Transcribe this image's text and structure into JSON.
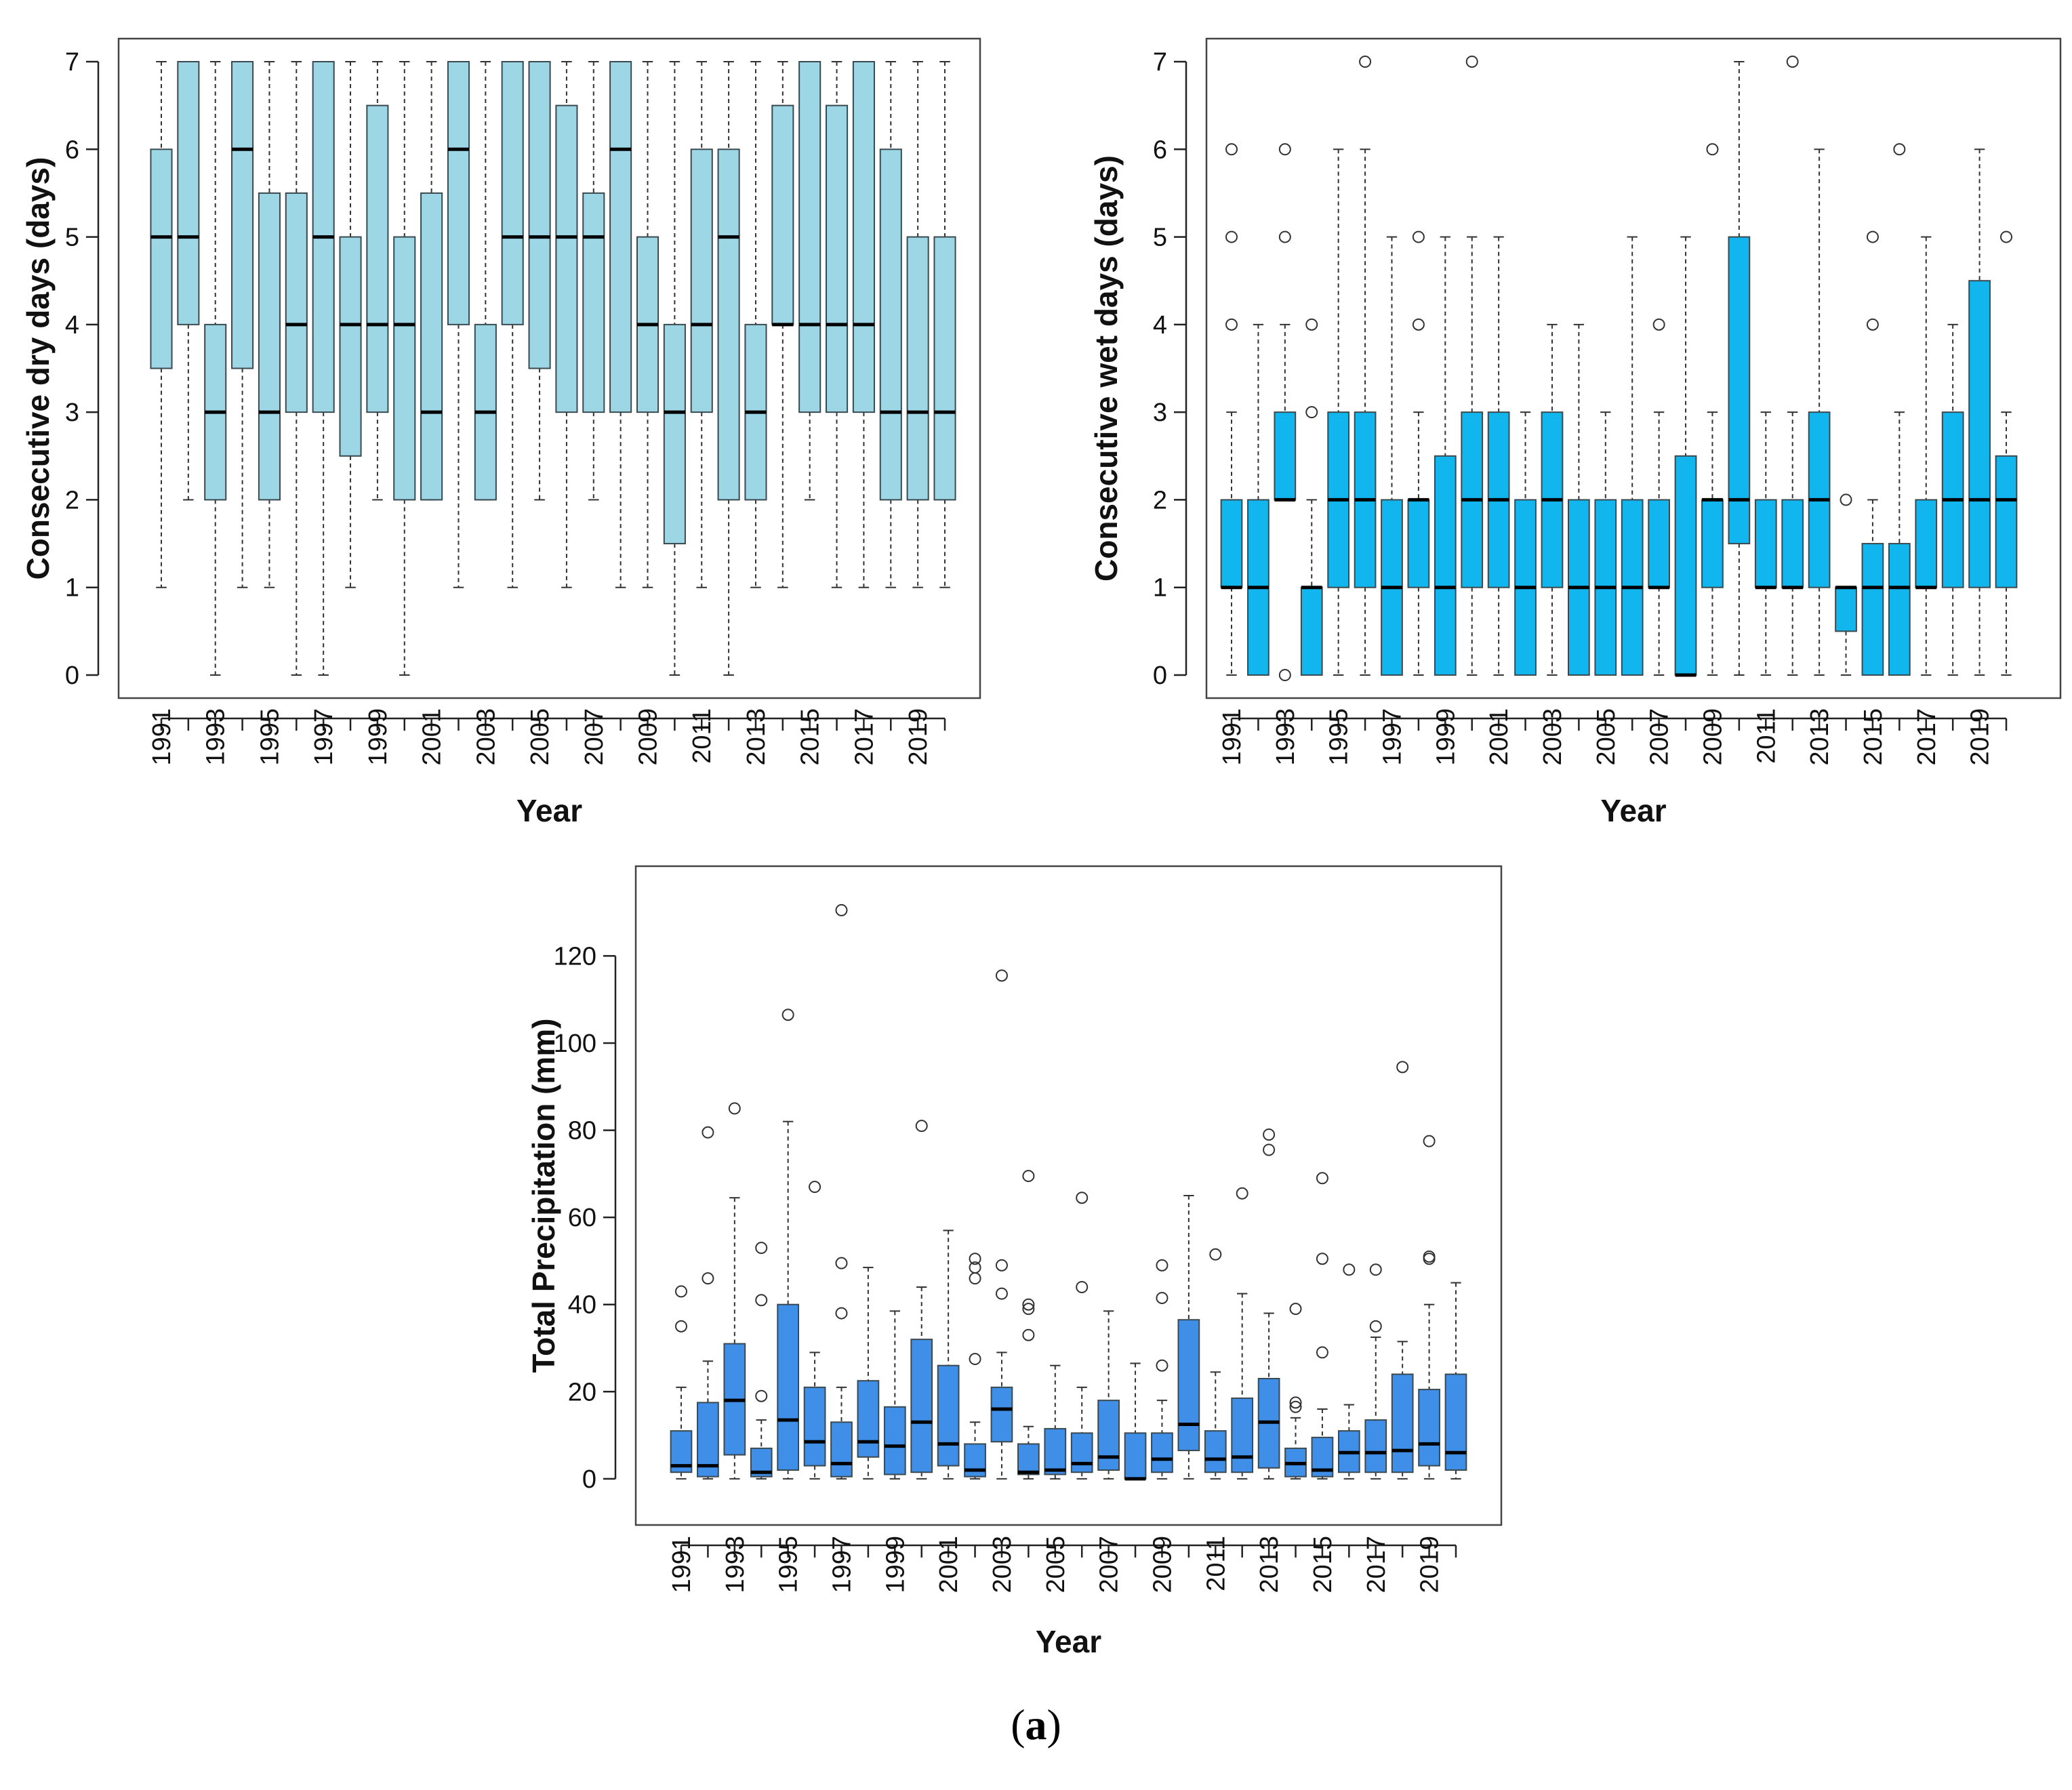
{
  "panel_label": {
    "open": "(",
    "letter": "a",
    "close": ")"
  },
  "chart_data": [
    {
      "type": "boxplot",
      "id": "dry",
      "title": "",
      "xlabel": "Year",
      "ylabel": "Consecutive dry days (days)",
      "ylim": [
        0,
        7
      ],
      "yticks": [
        0,
        1,
        2,
        3,
        4,
        5,
        6,
        7
      ],
      "fill": "#9dd7e6",
      "categories": [
        "1991",
        "1992",
        "1993",
        "1994",
        "1995",
        "1996",
        "1997",
        "1998",
        "1999",
        "2000",
        "2001",
        "2002",
        "2003",
        "2004",
        "2005",
        "2006",
        "2007",
        "2008",
        "2009",
        "2010",
        "2011",
        "2012",
        "2013",
        "2014",
        "2015",
        "2016",
        "2017",
        "2018",
        "2019",
        "2020"
      ],
      "tick_labels": [
        "1991",
        "1993",
        "1995",
        "1997",
        "1999",
        "2001",
        "2003",
        "2005",
        "2007",
        "2009",
        "2011",
        "2013",
        "2015",
        "2017",
        "2019"
      ],
      "boxes": [
        {
          "min": 1,
          "q1": 3.5,
          "median": 5,
          "q3": 6,
          "max": 7,
          "outliers": []
        },
        {
          "min": 2,
          "q1": 4,
          "median": 5,
          "q3": 7,
          "max": 7,
          "outliers": []
        },
        {
          "min": 0,
          "q1": 2,
          "median": 3,
          "q3": 4,
          "max": 7,
          "outliers": []
        },
        {
          "min": 1,
          "q1": 3.5,
          "median": 6,
          "q3": 7,
          "max": 7,
          "outliers": []
        },
        {
          "min": 1,
          "q1": 2,
          "median": 3,
          "q3": 5.5,
          "max": 7,
          "outliers": []
        },
        {
          "min": 0,
          "q1": 3,
          "median": 4,
          "q3": 5.5,
          "max": 7,
          "outliers": []
        },
        {
          "min": 0,
          "q1": 3,
          "median": 5,
          "q3": 7,
          "max": 7,
          "outliers": []
        },
        {
          "min": 1,
          "q1": 2.5,
          "median": 4,
          "q3": 5,
          "max": 7,
          "outliers": []
        },
        {
          "min": 2,
          "q1": 3,
          "median": 4,
          "q3": 6.5,
          "max": 7,
          "outliers": []
        },
        {
          "min": 0,
          "q1": 2,
          "median": 4,
          "q3": 5,
          "max": 7,
          "outliers": []
        },
        {
          "min": 2,
          "q1": 2,
          "median": 3,
          "q3": 5.5,
          "max": 7,
          "outliers": []
        },
        {
          "min": 1,
          "q1": 4,
          "median": 6,
          "q3": 7,
          "max": 7,
          "outliers": []
        },
        {
          "min": 2,
          "q1": 2,
          "median": 3,
          "q3": 4,
          "max": 7,
          "outliers": []
        },
        {
          "min": 1,
          "q1": 4,
          "median": 5,
          "q3": 7,
          "max": 7,
          "outliers": []
        },
        {
          "min": 2,
          "q1": 3.5,
          "median": 5,
          "q3": 7,
          "max": 7,
          "outliers": []
        },
        {
          "min": 1,
          "q1": 3,
          "median": 5,
          "q3": 6.5,
          "max": 7,
          "outliers": []
        },
        {
          "min": 2,
          "q1": 3,
          "median": 5,
          "q3": 5.5,
          "max": 7,
          "outliers": []
        },
        {
          "min": 1,
          "q1": 3,
          "median": 6,
          "q3": 7,
          "max": 7,
          "outliers": []
        },
        {
          "min": 1,
          "q1": 3,
          "median": 4,
          "q3": 5,
          "max": 7,
          "outliers": []
        },
        {
          "min": 0,
          "q1": 1.5,
          "median": 3,
          "q3": 4,
          "max": 7,
          "outliers": []
        },
        {
          "min": 1,
          "q1": 3,
          "median": 4,
          "q3": 6,
          "max": 7,
          "outliers": []
        },
        {
          "min": 0,
          "q1": 2,
          "median": 5,
          "q3": 6,
          "max": 7,
          "outliers": []
        },
        {
          "min": 1,
          "q1": 2,
          "median": 3,
          "q3": 4,
          "max": 7,
          "outliers": []
        },
        {
          "min": 1,
          "q1": 4,
          "median": 4,
          "q3": 6.5,
          "max": 7,
          "outliers": []
        },
        {
          "min": 2,
          "q1": 3,
          "median": 4,
          "q3": 7,
          "max": 7,
          "outliers": []
        },
        {
          "min": 1,
          "q1": 3,
          "median": 4,
          "q3": 6.5,
          "max": 7,
          "outliers": []
        },
        {
          "min": 1,
          "q1": 3,
          "median": 4,
          "q3": 7,
          "max": 7,
          "outliers": []
        },
        {
          "min": 1,
          "q1": 2,
          "median": 3,
          "q3": 6,
          "max": 7,
          "outliers": []
        },
        {
          "min": 1,
          "q1": 2,
          "median": 3,
          "q3": 5,
          "max": 7,
          "outliers": []
        },
        {
          "min": 1,
          "q1": 2,
          "median": 3,
          "q3": 5,
          "max": 7,
          "outliers": []
        }
      ]
    },
    {
      "type": "boxplot",
      "id": "wet",
      "title": "",
      "xlabel": "Year",
      "ylabel": "Consecutive wet days (days)",
      "ylim": [
        0,
        7
      ],
      "yticks": [
        0,
        1,
        2,
        3,
        4,
        5,
        6,
        7
      ],
      "fill": "#12b6ee",
      "categories": [
        "1991",
        "1992",
        "1993",
        "1994",
        "1995",
        "1996",
        "1997",
        "1998",
        "1999",
        "2000",
        "2001",
        "2002",
        "2003",
        "2004",
        "2005",
        "2006",
        "2007",
        "2008",
        "2009",
        "2010",
        "2011",
        "2012",
        "2013",
        "2014",
        "2015",
        "2016",
        "2017",
        "2018",
        "2019",
        "2020"
      ],
      "tick_labels": [
        "1991",
        "1993",
        "1995",
        "1997",
        "1999",
        "2001",
        "2003",
        "2005",
        "2007",
        "2009",
        "2011",
        "2013",
        "2015",
        "2017",
        "2019"
      ],
      "boxes": [
        {
          "min": 0,
          "q1": 1,
          "median": 1,
          "q3": 2,
          "max": 3,
          "outliers": [
            4,
            5,
            6
          ]
        },
        {
          "min": 0,
          "q1": 0,
          "median": 1,
          "q3": 2,
          "max": 4,
          "outliers": []
        },
        {
          "min": 2,
          "q1": 2,
          "median": 2,
          "q3": 3,
          "max": 4,
          "outliers": [
            0,
            5,
            6
          ]
        },
        {
          "min": 0,
          "q1": 0,
          "median": 1,
          "q3": 1,
          "max": 2,
          "outliers": [
            3,
            4
          ]
        },
        {
          "min": 0,
          "q1": 1,
          "median": 2,
          "q3": 3,
          "max": 6,
          "outliers": []
        },
        {
          "min": 0,
          "q1": 1,
          "median": 2,
          "q3": 3,
          "max": 6,
          "outliers": [
            7
          ]
        },
        {
          "min": 0,
          "q1": 0,
          "median": 1,
          "q3": 2,
          "max": 5,
          "outliers": []
        },
        {
          "min": 0,
          "q1": 1,
          "median": 2,
          "q3": 2,
          "max": 3,
          "outliers": [
            4,
            5
          ]
        },
        {
          "min": 0,
          "q1": 0,
          "median": 1,
          "q3": 2.5,
          "max": 5,
          "outliers": []
        },
        {
          "min": 0,
          "q1": 1,
          "median": 2,
          "q3": 3,
          "max": 5,
          "outliers": [
            7
          ]
        },
        {
          "min": 0,
          "q1": 1,
          "median": 2,
          "q3": 3,
          "max": 5,
          "outliers": []
        },
        {
          "min": 0,
          "q1": 0,
          "median": 1,
          "q3": 2,
          "max": 3,
          "outliers": []
        },
        {
          "min": 0,
          "q1": 1,
          "median": 2,
          "q3": 3,
          "max": 4,
          "outliers": []
        },
        {
          "min": 0,
          "q1": 0,
          "median": 1,
          "q3": 2,
          "max": 4,
          "outliers": []
        },
        {
          "min": 0,
          "q1": 0,
          "median": 1,
          "q3": 2,
          "max": 3,
          "outliers": []
        },
        {
          "min": 0,
          "q1": 0,
          "median": 1,
          "q3": 2,
          "max": 5,
          "outliers": []
        },
        {
          "min": 0,
          "q1": 1,
          "median": 1,
          "q3": 2,
          "max": 3,
          "outliers": [
            4
          ]
        },
        {
          "min": 0,
          "q1": 0,
          "median": 0,
          "q3": 2.5,
          "max": 5,
          "outliers": []
        },
        {
          "min": 0,
          "q1": 1,
          "median": 2,
          "q3": 2,
          "max": 3,
          "outliers": [
            6
          ]
        },
        {
          "min": 0,
          "q1": 1.5,
          "median": 2,
          "q3": 5,
          "max": 7,
          "outliers": []
        },
        {
          "min": 0,
          "q1": 1,
          "median": 1,
          "q3": 2,
          "max": 3,
          "outliers": []
        },
        {
          "min": 0,
          "q1": 1,
          "median": 1,
          "q3": 2,
          "max": 3,
          "outliers": [
            7
          ]
        },
        {
          "min": 0,
          "q1": 1,
          "median": 2,
          "q3": 3,
          "max": 6,
          "outliers": []
        },
        {
          "min": 0,
          "q1": 0.5,
          "median": 1,
          "q3": 1,
          "max": 1,
          "outliers": [
            2
          ]
        },
        {
          "min": 0,
          "q1": 0,
          "median": 1,
          "q3": 1.5,
          "max": 2,
          "outliers": [
            4,
            5
          ]
        },
        {
          "min": 0,
          "q1": 0,
          "median": 1,
          "q3": 1.5,
          "max": 3,
          "outliers": [
            6
          ]
        },
        {
          "min": 0,
          "q1": 1,
          "median": 1,
          "q3": 2,
          "max": 5,
          "outliers": []
        },
        {
          "min": 0,
          "q1": 1,
          "median": 2,
          "q3": 3,
          "max": 4,
          "outliers": []
        },
        {
          "min": 0,
          "q1": 1,
          "median": 2,
          "q3": 4.5,
          "max": 6,
          "outliers": []
        },
        {
          "min": 0,
          "q1": 1,
          "median": 2,
          "q3": 2.5,
          "max": 3,
          "outliers": [
            5
          ]
        }
      ]
    },
    {
      "type": "boxplot",
      "id": "precip",
      "title": "",
      "xlabel": "Year",
      "ylabel": "Total Precipitation (mm)",
      "ylim": [
        -5,
        135
      ],
      "yticks": [
        0,
        20,
        40,
        60,
        80,
        100,
        120
      ],
      "fill": "#3f8ee8",
      "categories": [
        "1991",
        "1992",
        "1993",
        "1994",
        "1995",
        "1996",
        "1997",
        "1998",
        "1999",
        "2000",
        "2001",
        "2002",
        "2003",
        "2004",
        "2005",
        "2006",
        "2007",
        "2008",
        "2009",
        "2010",
        "2011",
        "2012",
        "2013",
        "2014",
        "2015",
        "2016",
        "2017",
        "2018",
        "2019",
        "2020"
      ],
      "tick_labels": [
        "1991",
        "1993",
        "1995",
        "1997",
        "1999",
        "2001",
        "2003",
        "2005",
        "2007",
        "2009",
        "2011",
        "2013",
        "2015",
        "2017",
        "2019"
      ],
      "boxes": [
        {
          "min": 0,
          "q1": 1.5,
          "median": 3,
          "q3": 11,
          "max": 21,
          "outliers": [
            35,
            43
          ]
        },
        {
          "min": 0,
          "q1": 0.5,
          "median": 3,
          "q3": 17.5,
          "max": 27,
          "outliers": [
            46,
            79.5
          ]
        },
        {
          "min": 0,
          "q1": 5.5,
          "median": 18,
          "q3": 31,
          "max": 64.5,
          "outliers": [
            85
          ]
        },
        {
          "min": 0,
          "q1": 0.5,
          "median": 1.5,
          "q3": 7,
          "max": 13.5,
          "outliers": [
            19,
            41,
            53
          ]
        },
        {
          "min": 0,
          "q1": 2,
          "median": 13.5,
          "q3": 40,
          "max": 82,
          "outliers": [
            106.5
          ]
        },
        {
          "min": 0,
          "q1": 3,
          "median": 8.5,
          "q3": 21,
          "max": 29,
          "outliers": [
            67
          ]
        },
        {
          "min": 0,
          "q1": 0.5,
          "median": 3.5,
          "q3": 13,
          "max": 21,
          "outliers": [
            38,
            49.5,
            130.5
          ]
        },
        {
          "min": 0,
          "q1": 5,
          "median": 8.5,
          "q3": 22.5,
          "max": 48.5,
          "outliers": []
        },
        {
          "min": 0,
          "q1": 1,
          "median": 7.5,
          "q3": 16.5,
          "max": 38.5,
          "outliers": []
        },
        {
          "min": 0,
          "q1": 1.5,
          "median": 13,
          "q3": 32,
          "max": 44,
          "outliers": [
            81
          ]
        },
        {
          "min": 0,
          "q1": 3,
          "median": 8,
          "q3": 26,
          "max": 57,
          "outliers": []
        },
        {
          "min": 0,
          "q1": 0.5,
          "median": 2,
          "q3": 8,
          "max": 13,
          "outliers": [
            27.5,
            46,
            48.5,
            50.5
          ]
        },
        {
          "min": 0,
          "q1": 8.5,
          "median": 16,
          "q3": 21,
          "max": 29,
          "outliers": [
            42.5,
            49,
            115.5
          ]
        },
        {
          "min": 0,
          "q1": 1,
          "median": 1.5,
          "q3": 8,
          "max": 12,
          "outliers": [
            33,
            39,
            40,
            69.5
          ]
        },
        {
          "min": 0,
          "q1": 1,
          "median": 2,
          "q3": 11.5,
          "max": 26,
          "outliers": []
        },
        {
          "min": 0,
          "q1": 1.5,
          "median": 3.5,
          "q3": 10.5,
          "max": 21,
          "outliers": [
            44,
            64.5
          ]
        },
        {
          "min": 0,
          "q1": 2,
          "median": 5,
          "q3": 18,
          "max": 38.5,
          "outliers": []
        },
        {
          "min": 0,
          "q1": 0,
          "median": 0,
          "q3": 10.5,
          "max": 26.5,
          "outliers": []
        },
        {
          "min": 0,
          "q1": 1.5,
          "median": 4.5,
          "q3": 10.5,
          "max": 18,
          "outliers": [
            26,
            41.5,
            49
          ]
        },
        {
          "min": 0,
          "q1": 6.5,
          "median": 12.5,
          "q3": 36.5,
          "max": 65,
          "outliers": []
        },
        {
          "min": 0,
          "q1": 1.5,
          "median": 4.5,
          "q3": 11,
          "max": 24.5,
          "outliers": [
            51.5
          ]
        },
        {
          "min": 0,
          "q1": 1.5,
          "median": 5,
          "q3": 18.5,
          "max": 42.5,
          "outliers": [
            65.5
          ]
        },
        {
          "min": 0,
          "q1": 2.5,
          "median": 13,
          "q3": 23,
          "max": 38,
          "outliers": [
            75.5,
            79
          ]
        },
        {
          "min": 0,
          "q1": 0.5,
          "median": 3.5,
          "q3": 7,
          "max": 14,
          "outliers": [
            16.5,
            17.5,
            39
          ]
        },
        {
          "min": 0,
          "q1": 0.5,
          "median": 2,
          "q3": 9.5,
          "max": 16,
          "outliers": [
            29,
            50.5,
            69
          ]
        },
        {
          "min": 0,
          "q1": 1.5,
          "median": 6,
          "q3": 11,
          "max": 17,
          "outliers": [
            48
          ]
        },
        {
          "min": 0,
          "q1": 1.5,
          "median": 6,
          "q3": 13.5,
          "max": 32.5,
          "outliers": [
            35,
            48
          ]
        },
        {
          "min": 0,
          "q1": 1.5,
          "median": 6.5,
          "q3": 24,
          "max": 31.5,
          "outliers": [
            94.5
          ]
        },
        {
          "min": 0,
          "q1": 3,
          "median": 8,
          "q3": 20.5,
          "max": 40,
          "outliers": [
            50.5,
            51,
            77.5
          ]
        },
        {
          "min": 0,
          "q1": 2,
          "median": 6,
          "q3": 24,
          "max": 45,
          "outliers": []
        }
      ]
    }
  ]
}
